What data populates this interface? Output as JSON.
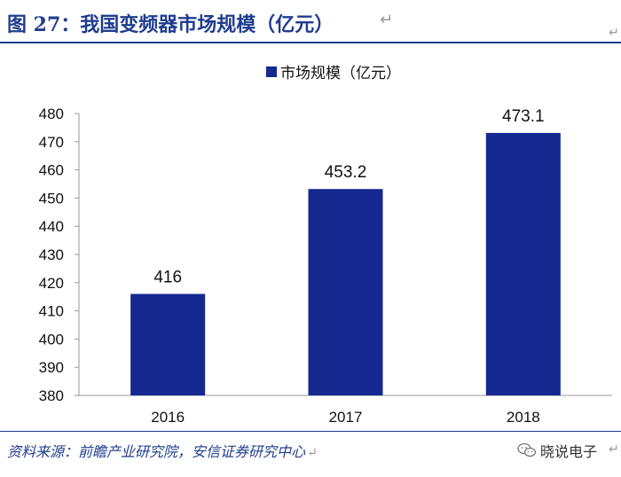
{
  "header": {
    "title": "图 27：我国变频器市场规模（亿元）"
  },
  "chart_data": {
    "type": "bar",
    "categories": [
      "2016",
      "2017",
      "2018"
    ],
    "series": [
      {
        "name": "市场规模（亿元）",
        "values": [
          416,
          453.2,
          473.1
        ],
        "labels": [
          "416",
          "453.2",
          "473.1"
        ]
      }
    ],
    "ylim": [
      380,
      480
    ],
    "yticks": [
      380,
      390,
      400,
      410,
      420,
      430,
      440,
      450,
      460,
      470,
      480
    ],
    "legend_position": "top",
    "grid": false,
    "bar_color": "#14288f"
  },
  "footer": {
    "source": "资料来源：前瞻产业研究院，安信证券研究中心",
    "brand": "晓说电子"
  }
}
